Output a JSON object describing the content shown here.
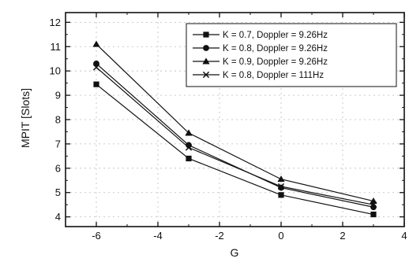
{
  "chart_data": {
    "type": "line",
    "xlabel": "G",
    "ylabel": "MPIT [Slots]",
    "xlim": [
      -7,
      4
    ],
    "ylim": [
      3.6,
      12.4
    ],
    "xticks": [
      "-6",
      "-4",
      "-2",
      "0",
      "2",
      "4"
    ],
    "yticks": [
      "4",
      "5",
      "6",
      "7",
      "8",
      "9",
      "10",
      "11",
      "12"
    ],
    "grid": true,
    "legend_position": "top-right",
    "x": [
      -6,
      -3,
      0,
      3
    ],
    "series": [
      {
        "name": "K = 0.7, Doppler = 9.26Hz",
        "marker": "square",
        "values": [
          9.45,
          6.4,
          4.9,
          4.1
        ]
      },
      {
        "name": "K = 0.8, Doppler = 9.26Hz",
        "marker": "circle",
        "values": [
          10.3,
          6.95,
          5.2,
          4.4
        ]
      },
      {
        "name": "K = 0.9, Doppler = 9.26Hz",
        "marker": "triangle",
        "values": [
          11.1,
          7.45,
          5.55,
          4.65
        ]
      },
      {
        "name": "K = 0.8, Doppler = 111Hz",
        "marker": "x",
        "values": [
          10.15,
          6.85,
          5.25,
          4.5
        ]
      }
    ]
  }
}
